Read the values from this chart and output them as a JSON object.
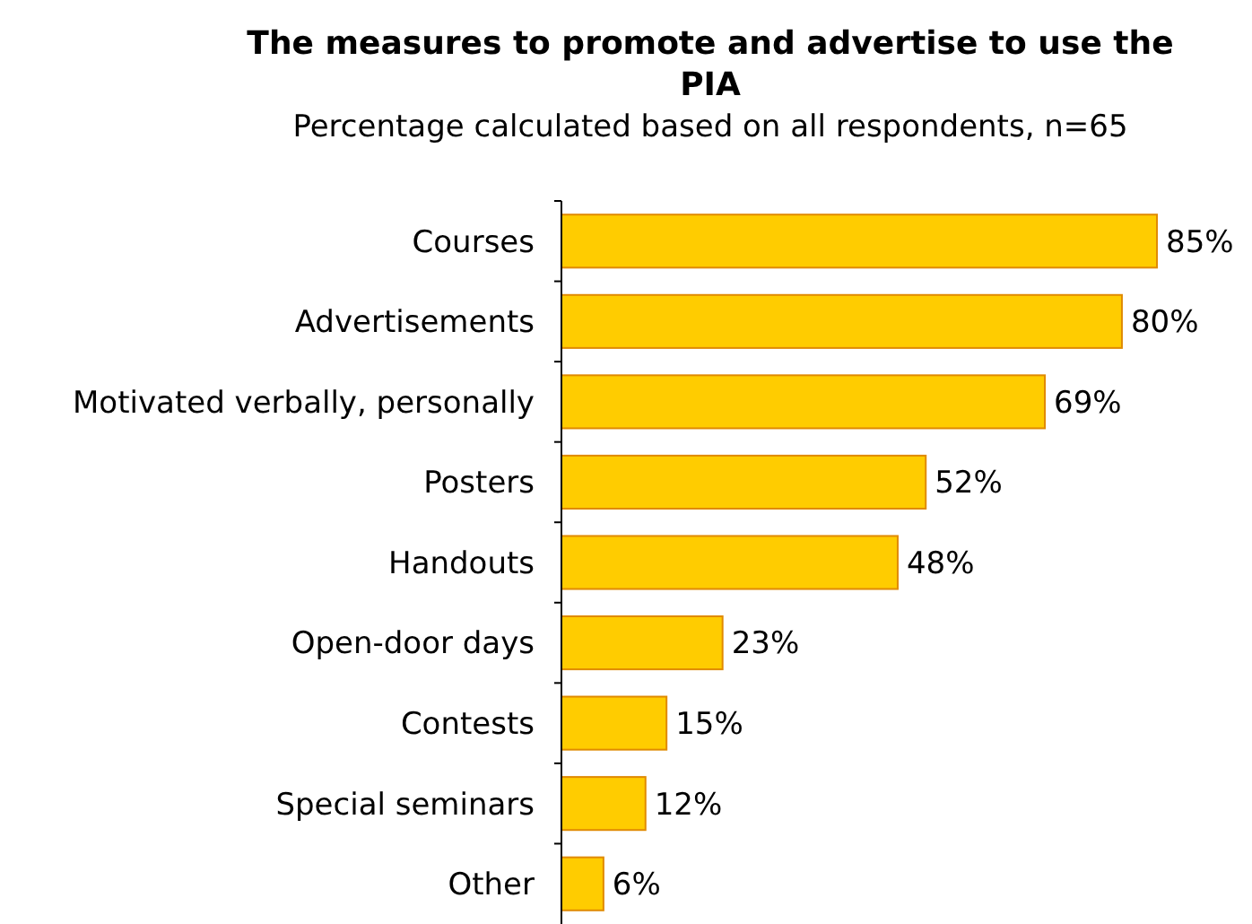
{
  "chart_data": {
    "type": "bar",
    "orientation": "horizontal",
    "title": "The measures to promote and advertise to use the PIA",
    "subtitle": "Percentage calculated based on all respondents, n=65",
    "categories": [
      "Courses",
      "Advertisements",
      "Motivated verbally, personally",
      "Posters",
      "Handouts",
      "Open-door days",
      "Contests",
      "Special seminars",
      "Other"
    ],
    "values": [
      85,
      80,
      69,
      52,
      48,
      23,
      15,
      12,
      6
    ],
    "value_labels": [
      "85%",
      "80%",
      "69%",
      "52%",
      "48%",
      "23%",
      "15%",
      "12%",
      "6%"
    ],
    "color": "#ffcc00"
  }
}
